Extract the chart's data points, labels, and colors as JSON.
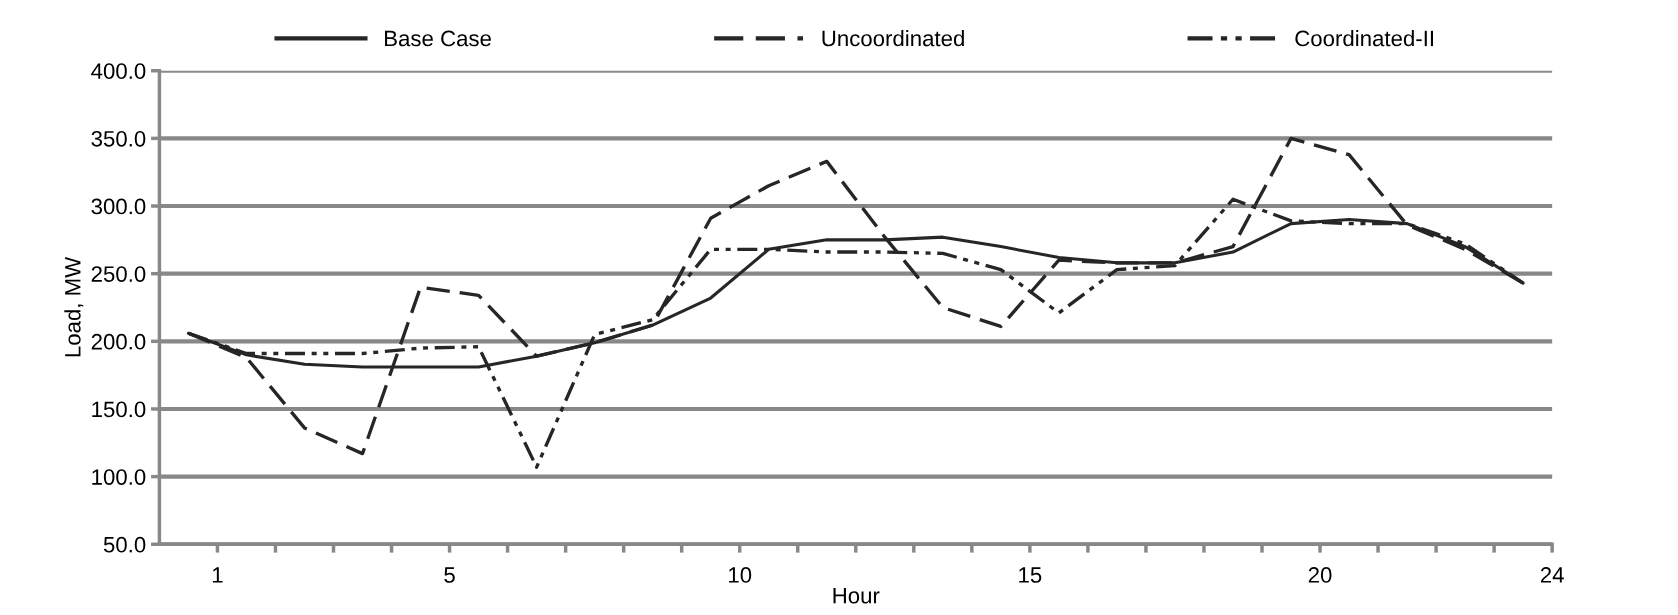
{
  "chart_data": {
    "type": "line",
    "xlabel": "Hour",
    "ylabel": "Load, MW",
    "x": [
      0.5,
      1.5,
      2.5,
      3.5,
      4.5,
      5.5,
      6.5,
      7.5,
      8.5,
      9.5,
      10.5,
      11.5,
      12.5,
      13.5,
      14.5,
      15.5,
      16.5,
      17.5,
      18.5,
      19.5,
      20.5,
      21.5,
      22.5,
      23.5
    ],
    "series": [
      {
        "name": "Base Case",
        "color": "#262626",
        "line_style": "solid",
        "values": [
          206,
          190,
          183,
          181,
          181,
          181,
          189,
          199,
          212,
          232,
          268,
          275,
          275,
          277,
          270,
          262,
          258,
          258,
          266,
          287,
          290,
          287,
          270,
          243
        ]
      },
      {
        "name": "Uncoordinated",
        "color": "#262626",
        "line_style": "dashed",
        "values": [
          206,
          188,
          136,
          117,
          240,
          234,
          189,
          199,
          212,
          291,
          315,
          333,
          277,
          225,
          211,
          260,
          258,
          258,
          270,
          350,
          338,
          286,
          268,
          243
        ]
      },
      {
        "name": "Coordinated-II",
        "color": "#262626",
        "line_style": "dashdotdot",
        "values": [
          206,
          191,
          191,
          191,
          195,
          196,
          107,
          205,
          216,
          268,
          268,
          266,
          266,
          265,
          253,
          221,
          253,
          256,
          305,
          289,
          287,
          287,
          272,
          243
        ]
      }
    ],
    "xlim": [
      0,
      24
    ],
    "xticks": [
      {
        "value": 1,
        "label": "1"
      },
      {
        "value": 2,
        "label": null
      },
      {
        "value": 3,
        "label": null
      },
      {
        "value": 4,
        "label": null
      },
      5,
      {
        "value": 6,
        "label": null
      },
      {
        "value": 7,
        "label": null
      },
      {
        "value": 8,
        "label": null
      },
      {
        "value": 9,
        "label": null
      },
      10,
      {
        "value": 11,
        "label": null
      },
      {
        "value": 12,
        "label": null
      },
      {
        "value": 13,
        "label": null
      },
      {
        "value": 14,
        "label": null
      },
      15,
      {
        "value": 16,
        "label": null
      },
      {
        "value": 17,
        "label": null
      },
      {
        "value": 18,
        "label": null
      },
      {
        "value": 19,
        "label": null
      },
      20,
      {
        "value": 21,
        "label": null
      },
      {
        "value": 22,
        "label": null
      },
      {
        "value": 23,
        "label": null
      },
      24
    ],
    "ylim": [
      50,
      400
    ],
    "yticks": [
      {
        "value": 50,
        "label": "50.0"
      },
      {
        "value": 100,
        "label": "100.0"
      },
      {
        "value": 150,
        "label": "150.0"
      },
      {
        "value": 200,
        "label": "200.0"
      },
      {
        "value": 250,
        "label": "250.0"
      },
      {
        "value": 300,
        "label": "300.0"
      },
      {
        "value": 350,
        "label": "350.0"
      },
      {
        "value": 400,
        "label": "400.0"
      }
    ],
    "grid": "y",
    "legend": "top",
    "marker": "none"
  }
}
